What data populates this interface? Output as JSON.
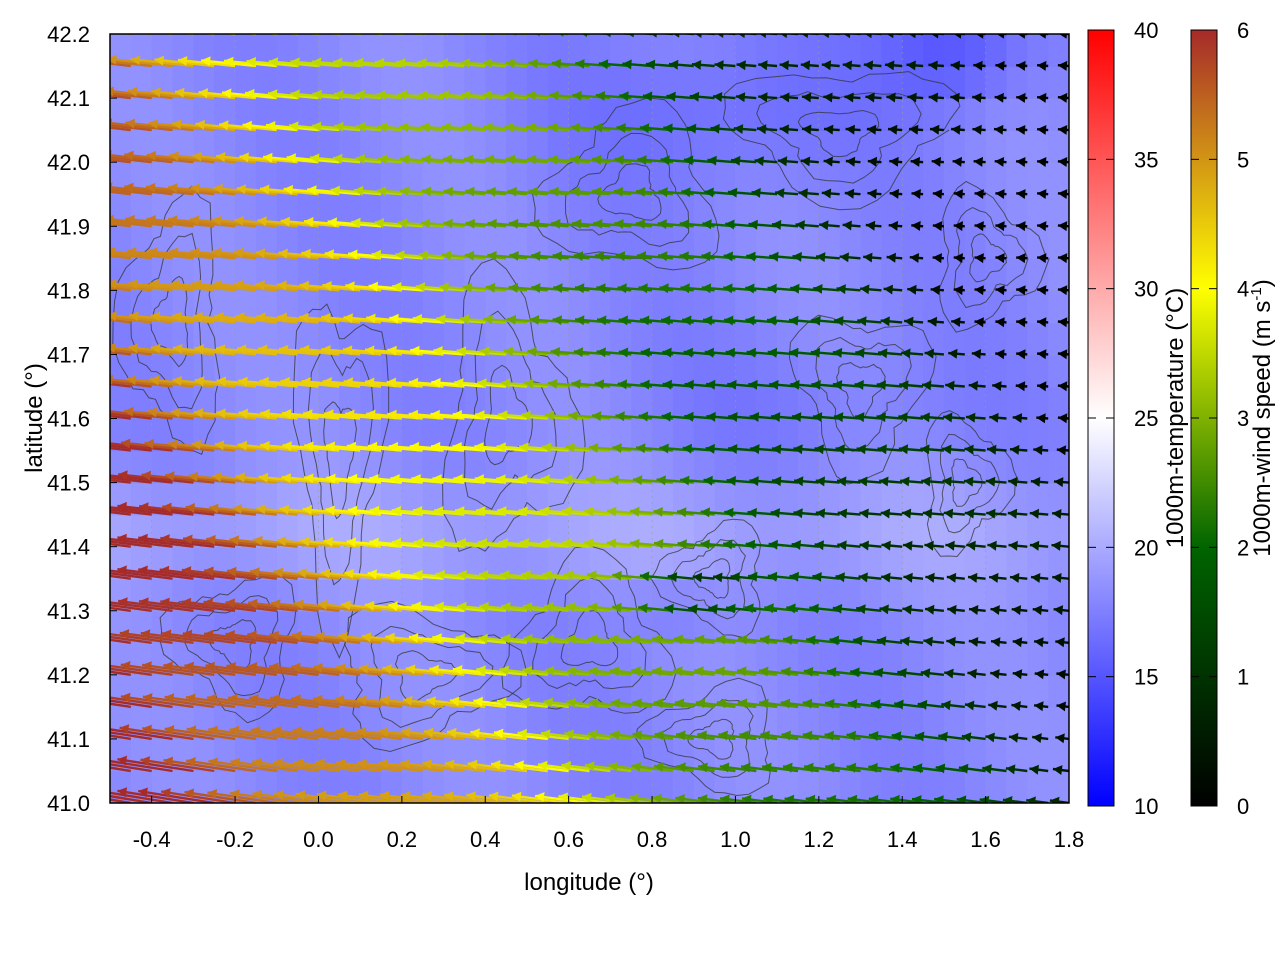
{
  "chart_data": {
    "type": "heatmap",
    "xlabel": "longitude (°)",
    "ylabel": "latitude (°)",
    "xlim": [
      -0.5,
      1.8
    ],
    "ylim": [
      41.0,
      42.2
    ],
    "xticks": [
      -0.4,
      -0.2,
      0.0,
      0.2,
      0.4,
      0.6,
      0.8,
      1.0,
      1.2,
      1.4,
      1.6,
      1.8
    ],
    "xtick_labels": [
      "-0.4",
      "-0.2",
      "0.0",
      "0.2",
      "0.4",
      "0.6",
      "0.8",
      "1.0",
      "1.2",
      "1.4",
      "1.6",
      "1.8"
    ],
    "yticks": [
      41.0,
      41.1,
      41.2,
      41.3,
      41.4,
      41.5,
      41.6,
      41.7,
      41.8,
      41.9,
      42.0,
      42.1,
      42.2
    ],
    "ytick_labels": [
      "41.0",
      "41.1",
      "41.2",
      "41.3",
      "41.4",
      "41.5",
      "41.6",
      "41.7",
      "41.8",
      "41.9",
      "42.0",
      "42.1",
      "42.2"
    ],
    "grid": true,
    "layers": {
      "shading": "1000m-temperature",
      "vectors": "1000m-wind (coloured by speed)",
      "contours": "terrain elevation"
    },
    "temperature_colorbar": {
      "label": "1000m-temperature (°C)",
      "range": [
        10,
        40
      ],
      "ticks": [
        10,
        15,
        20,
        25,
        30,
        35,
        40
      ],
      "tick_labels": [
        "10",
        "15",
        "20",
        "25",
        "30",
        "35",
        "40"
      ],
      "colors": [
        "#0000ff",
        "#ffffff",
        "#ff0000"
      ]
    },
    "wind_colorbar": {
      "label_main": "1000m-wind speed (m s",
      "label_sup": "-1",
      "label_end": ")",
      "range": [
        0,
        6
      ],
      "ticks": [
        0,
        1,
        2,
        3,
        4,
        5,
        6
      ],
      "tick_labels": [
        "0",
        "1",
        "2",
        "3",
        "4",
        "5",
        "6"
      ],
      "colors": [
        "#000000",
        "#006400",
        "#ffff00",
        "#a52a2a"
      ]
    },
    "temperature_field_summary": {
      "range_shown": [
        14,
        22
      ],
      "coldest_region": "north-east (lon 1.4–1.7, lat 42.1–42.2)",
      "warm_band": "lat 41.3–41.5 across central longitudes"
    },
    "wind_field_summary": {
      "direction": "westward (easterly flow)",
      "strong_region": "west/south-west, speed ~6",
      "moderate_region": "centre, speed ~4–5",
      "weak_region": "north-east, speed ~0–2"
    }
  }
}
